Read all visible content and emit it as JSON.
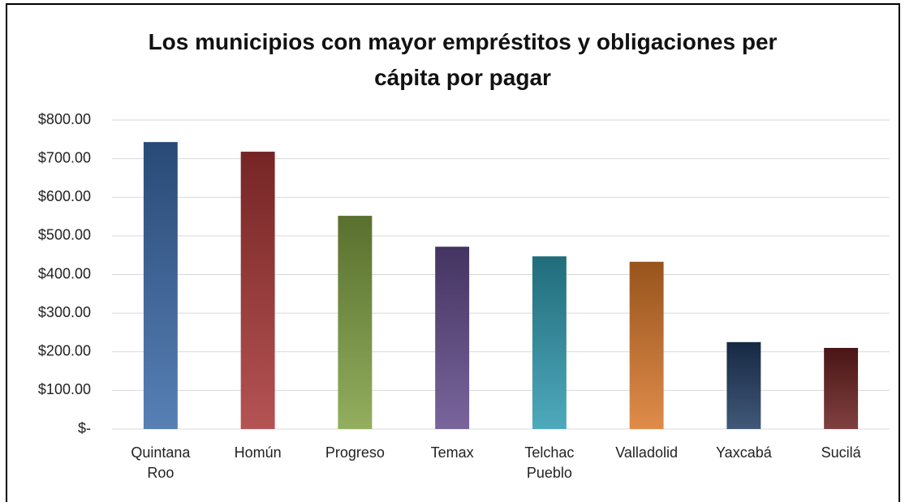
{
  "chart_data": {
    "type": "bar",
    "title": "Los municipios con mayor empréstitos y obligaciones per cápita por pagar",
    "categories": [
      "Quintana Roo",
      "Homún",
      "Progreso",
      "Temax",
      "Telchac Pueblo",
      "Valladolid",
      "Yaxcabá",
      "Sucilá"
    ],
    "values": [
      743,
      718,
      552,
      472,
      447,
      433,
      225,
      210
    ],
    "colors": [
      "#3a6aa8",
      "#a83535",
      "#7fa042",
      "#614a8a",
      "#2f9ab0",
      "#d9782a",
      "#1f3a60",
      "#6a1e1e"
    ],
    "ylim": [
      0,
      800
    ],
    "yticks": [
      {
        "value": 0,
        "label": "$-"
      },
      {
        "value": 100,
        "label": "$100.00"
      },
      {
        "value": 200,
        "label": "$200.00"
      },
      {
        "value": 300,
        "label": "$300.00"
      },
      {
        "value": 400,
        "label": "$400.00"
      },
      {
        "value": 500,
        "label": "$500.00"
      },
      {
        "value": 600,
        "label": "$600.00"
      },
      {
        "value": 700,
        "label": "$700.00"
      },
      {
        "value": 800,
        "label": "$800.00"
      }
    ],
    "grid": true
  }
}
